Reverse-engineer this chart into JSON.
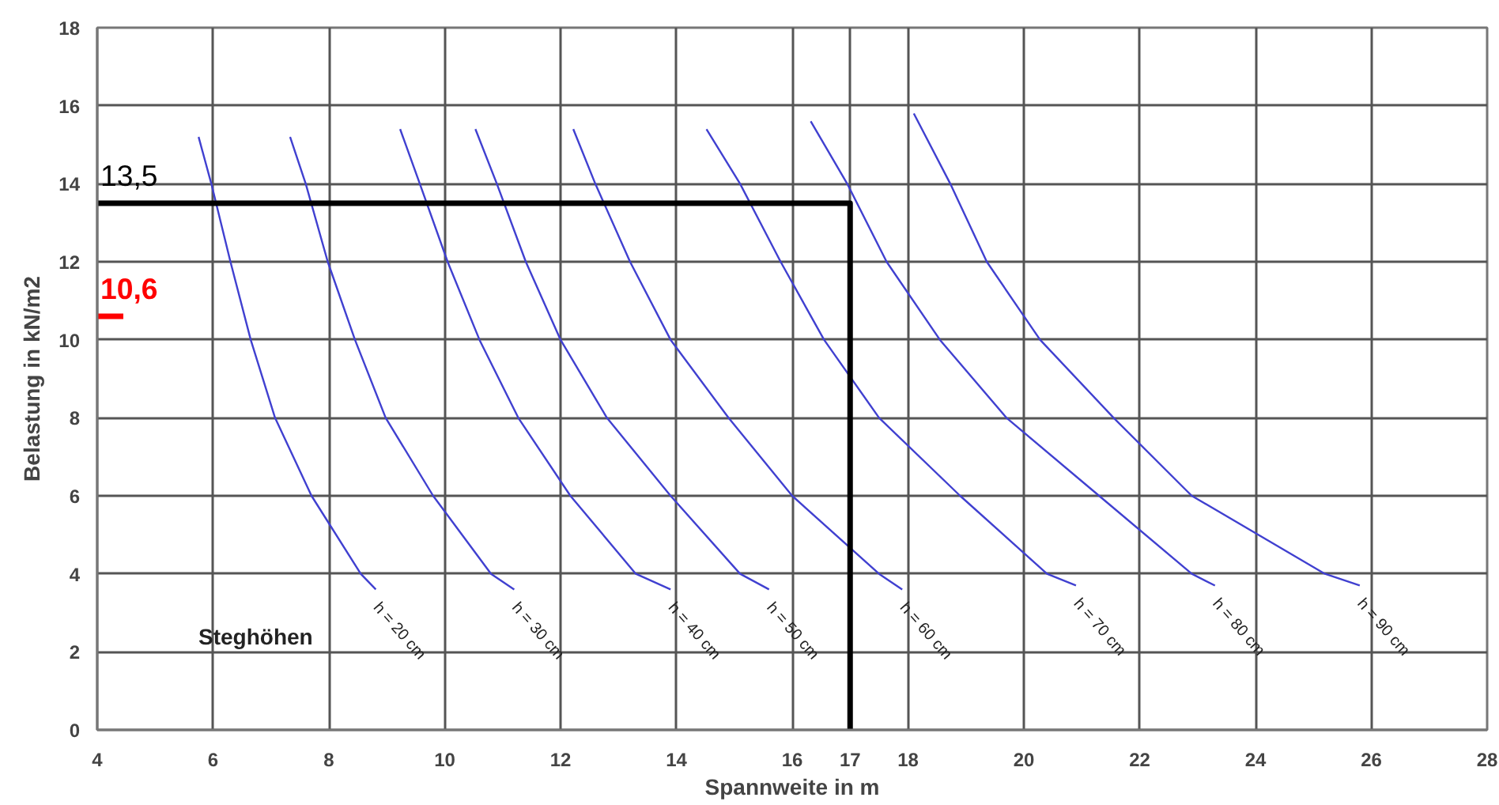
{
  "chart_data": {
    "type": "line",
    "xlabel": "Spannweite in m",
    "ylabel": "Belastung in kN/m2",
    "xlim": [
      4,
      28
    ],
    "xticks": [
      4,
      6,
      8,
      10,
      12,
      14,
      16,
      17,
      18,
      20,
      22,
      24,
      26,
      28
    ],
    "ylim": [
      0,
      18
    ],
    "yticks": [
      0,
      2,
      4,
      6,
      8,
      10,
      12,
      14,
      16,
      18
    ],
    "grid": true,
    "series": [
      {
        "name": "h = 20 cm",
        "color": "#4040d0",
        "x": [
          5.75,
          5.97,
          6.3,
          6.65,
          7.07,
          7.7,
          8.55,
          8.81
        ],
        "values": [
          15.2,
          14,
          12,
          10,
          8,
          6,
          4,
          3.6
        ]
      },
      {
        "name": "h = 30 cm",
        "color": "#4040d0",
        "x": [
          7.33,
          7.6,
          7.98,
          8.45,
          8.98,
          9.8,
          10.8,
          11.2
        ],
        "values": [
          15.2,
          14,
          12,
          10,
          8,
          6,
          4,
          3.6
        ]
      },
      {
        "name": "h = 40 cm",
        "color": "#4040d0",
        "x": [
          9.23,
          9.57,
          10.05,
          10.6,
          11.27,
          12.17,
          13.3,
          13.9
        ],
        "values": [
          15.4,
          14,
          12,
          10,
          8,
          6,
          4,
          3.6
        ]
      },
      {
        "name": "h = 50 cm",
        "color": "#4040d0",
        "x": [
          10.53,
          10.9,
          11.4,
          12.0,
          12.8,
          13.9,
          15.1,
          15.6
        ],
        "values": [
          15.4,
          14,
          12,
          10,
          8,
          6,
          4,
          3.6
        ]
      },
      {
        "name": "h = 60 cm",
        "color": "#4040d0",
        "x": [
          12.22,
          12.6,
          13.2,
          13.9,
          14.9,
          16.0,
          17.5,
          17.9
        ],
        "values": [
          15.4,
          14,
          12,
          10,
          8,
          6,
          4,
          3.6
        ]
      },
      {
        "name": "h = 70 cm",
        "color": "#4040d0",
        "x": [
          14.52,
          15.1,
          15.8,
          16.55,
          17.5,
          18.9,
          20.4,
          20.9
        ],
        "values": [
          15.4,
          14,
          12,
          10,
          8,
          6,
          4,
          3.7
        ]
      },
      {
        "name": "h = 80 cm",
        "color": "#4040d0",
        "x": [
          16.32,
          16.95,
          17.63,
          18.55,
          19.7,
          21.3,
          22.9,
          23.3
        ],
        "values": [
          15.6,
          14,
          12,
          10,
          8,
          6,
          4,
          3.7
        ]
      },
      {
        "name": "h = 90 cm",
        "color": "#4040d0",
        "x": [
          18.1,
          18.73,
          19.36,
          20.28,
          21.55,
          22.9,
          25.2,
          25.8
        ],
        "values": [
          15.8,
          14,
          12,
          10,
          8,
          6,
          4,
          3.7
        ]
      },
      {
        "color": "#000000",
        "x": [
          4,
          17,
          17
        ],
        "values": [
          13.5,
          13.5,
          0
        ],
        "value_labels": [
          "13,5",
          null,
          null
        ]
      },
      {
        "color": "#ff0000",
        "x": [
          4,
          4.45
        ],
        "values": [
          10.6,
          10.6
        ],
        "value_labels": [
          "10,6",
          null
        ]
      }
    ],
    "annotations": [
      "Steghöhen"
    ]
  }
}
